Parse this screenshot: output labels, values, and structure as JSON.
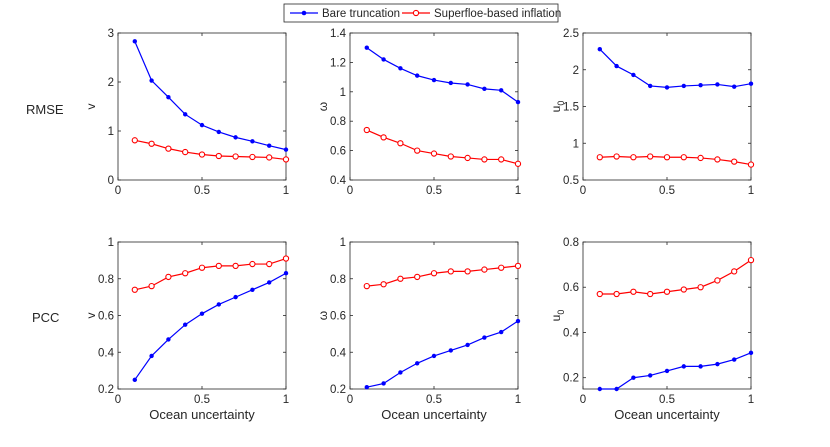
{
  "legend": {
    "position": "top-center",
    "entries": [
      {
        "name": "Bare truncation",
        "color": "#0000ff",
        "marker": "dot"
      },
      {
        "name": "Superfloe-based inflation",
        "color": "#ff0000",
        "marker": "circle"
      }
    ]
  },
  "row_labels": [
    "RMSE",
    "PCC"
  ],
  "chart_data": [
    {
      "type": "line",
      "row": "RMSE",
      "ylabel": "v",
      "xlabel": "",
      "xlim": [
        0,
        1
      ],
      "ylim": [
        0,
        3
      ],
      "xticks": [
        0,
        0.5,
        1
      ],
      "xtick_labels": [
        "0",
        "0.5",
        "1"
      ],
      "yticks": [
        0,
        1,
        2,
        3
      ],
      "ytick_labels": [
        "0",
        "1",
        "2",
        "3"
      ],
      "x": [
        0.1,
        0.2,
        0.3,
        0.4,
        0.5,
        0.6,
        0.7,
        0.8,
        0.9,
        1.0
      ],
      "series": [
        {
          "name": "Bare truncation",
          "values": [
            2.83,
            2.03,
            1.69,
            1.34,
            1.12,
            0.98,
            0.87,
            0.79,
            0.7,
            0.62
          ]
        },
        {
          "name": "Superfloe-based inflation",
          "values": [
            0.81,
            0.74,
            0.64,
            0.57,
            0.52,
            0.49,
            0.48,
            0.47,
            0.46,
            0.42
          ]
        }
      ]
    },
    {
      "type": "line",
      "row": "RMSE",
      "ylabel": "ω",
      "xlabel": "",
      "xlim": [
        0,
        1
      ],
      "ylim": [
        0.4,
        1.4
      ],
      "xticks": [
        0,
        0.5,
        1
      ],
      "xtick_labels": [
        "0",
        "0.5",
        "1"
      ],
      "yticks": [
        0.4,
        0.6,
        0.8,
        1,
        1.2,
        1.4
      ],
      "ytick_labels": [
        "0.4",
        "0.6",
        "0.8",
        "1",
        "1.2",
        "1.4"
      ],
      "x": [
        0.1,
        0.2,
        0.3,
        0.4,
        0.5,
        0.6,
        0.7,
        0.8,
        0.9,
        1.0
      ],
      "series": [
        {
          "name": "Bare truncation",
          "values": [
            1.3,
            1.22,
            1.16,
            1.11,
            1.08,
            1.06,
            1.05,
            1.02,
            1.01,
            0.93
          ]
        },
        {
          "name": "Superfloe-based inflation",
          "values": [
            0.74,
            0.69,
            0.65,
            0.6,
            0.58,
            0.56,
            0.55,
            0.54,
            0.54,
            0.51
          ]
        }
      ]
    },
    {
      "type": "line",
      "row": "RMSE",
      "ylabel": "u",
      "ylabel_sub": "0",
      "xlabel": "",
      "xlim": [
        0,
        1
      ],
      "ylim": [
        0.5,
        2.5
      ],
      "xticks": [
        0,
        0.5,
        1
      ],
      "xtick_labels": [
        "0",
        "0.5",
        "1"
      ],
      "yticks": [
        0.5,
        1,
        1.5,
        2,
        2.5
      ],
      "ytick_labels": [
        "0.5",
        "1",
        "1.5",
        "2",
        "2.5"
      ],
      "x": [
        0.1,
        0.2,
        0.3,
        0.4,
        0.5,
        0.6,
        0.7,
        0.8,
        0.9,
        1.0
      ],
      "series": [
        {
          "name": "Bare truncation",
          "values": [
            2.28,
            2.05,
            1.93,
            1.78,
            1.76,
            1.78,
            1.79,
            1.8,
            1.77,
            1.81
          ]
        },
        {
          "name": "Superfloe-based inflation",
          "values": [
            0.81,
            0.82,
            0.81,
            0.82,
            0.81,
            0.81,
            0.8,
            0.78,
            0.75,
            0.71
          ]
        }
      ]
    },
    {
      "type": "line",
      "row": "PCC",
      "ylabel": "v",
      "xlabel": "Ocean uncertainty",
      "xlim": [
        0,
        1
      ],
      "ylim": [
        0.2,
        1
      ],
      "xticks": [
        0,
        0.5,
        1
      ],
      "xtick_labels": [
        "0",
        "0.5",
        "1"
      ],
      "yticks": [
        0.2,
        0.4,
        0.6,
        0.8,
        1
      ],
      "ytick_labels": [
        "0.2",
        "0.4",
        "0.6",
        "0.8",
        "1"
      ],
      "x": [
        0.1,
        0.2,
        0.3,
        0.4,
        0.5,
        0.6,
        0.7,
        0.8,
        0.9,
        1.0
      ],
      "series": [
        {
          "name": "Bare truncation",
          "values": [
            0.25,
            0.38,
            0.47,
            0.55,
            0.61,
            0.66,
            0.7,
            0.74,
            0.78,
            0.83
          ]
        },
        {
          "name": "Superfloe-based inflation",
          "values": [
            0.74,
            0.76,
            0.81,
            0.83,
            0.86,
            0.87,
            0.87,
            0.88,
            0.88,
            0.91
          ]
        }
      ]
    },
    {
      "type": "line",
      "row": "PCC",
      "ylabel": "ω",
      "xlabel": "Ocean uncertainty",
      "xlim": [
        0,
        1
      ],
      "ylim": [
        0.2,
        1
      ],
      "xticks": [
        0,
        0.5,
        1
      ],
      "xtick_labels": [
        "0",
        "0.5",
        "1"
      ],
      "yticks": [
        0.2,
        0.4,
        0.6,
        0.8,
        1
      ],
      "ytick_labels": [
        "0.2",
        "0.4",
        "0.6",
        "0.8",
        "1"
      ],
      "x": [
        0.1,
        0.2,
        0.3,
        0.4,
        0.5,
        0.6,
        0.7,
        0.8,
        0.9,
        1.0
      ],
      "series": [
        {
          "name": "Bare truncation",
          "values": [
            0.21,
            0.23,
            0.29,
            0.34,
            0.38,
            0.41,
            0.44,
            0.48,
            0.51,
            0.57
          ]
        },
        {
          "name": "Superfloe-based inflation",
          "values": [
            0.76,
            0.77,
            0.8,
            0.81,
            0.83,
            0.84,
            0.84,
            0.85,
            0.86,
            0.87
          ]
        }
      ]
    },
    {
      "type": "line",
      "row": "PCC",
      "ylabel": "u",
      "ylabel_sub": "0",
      "xlabel": "Ocean uncertainty",
      "xlim": [
        0,
        1
      ],
      "ylim": [
        0.15,
        0.8
      ],
      "xticks": [
        0,
        0.5,
        1
      ],
      "xtick_labels": [
        "0",
        "0.5",
        "1"
      ],
      "yticks": [
        0.2,
        0.4,
        0.6,
        0.8
      ],
      "ytick_labels": [
        "0.2",
        "0.4",
        "0.6",
        "0.8"
      ],
      "x": [
        0.1,
        0.2,
        0.3,
        0.4,
        0.5,
        0.6,
        0.7,
        0.8,
        0.9,
        1.0
      ],
      "series": [
        {
          "name": "Bare truncation",
          "values": [
            0.15,
            0.15,
            0.2,
            0.21,
            0.23,
            0.25,
            0.25,
            0.26,
            0.28,
            0.31
          ]
        },
        {
          "name": "Superfloe-based inflation",
          "values": [
            0.57,
            0.57,
            0.58,
            0.57,
            0.58,
            0.59,
            0.6,
            0.63,
            0.67,
            0.72
          ]
        }
      ]
    }
  ]
}
